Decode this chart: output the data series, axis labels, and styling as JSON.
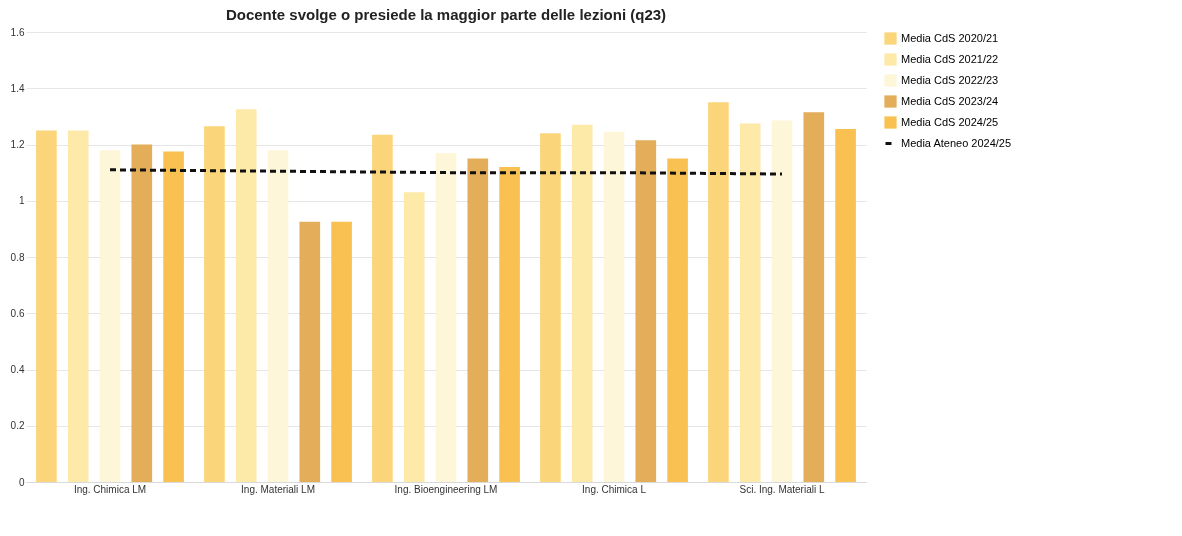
{
  "chart_data": {
    "type": "bar",
    "title": "Docente svolge o presiede la maggior parte delle lezioni (q23)",
    "categories": [
      "Ing. Chimica LM",
      "Ing. Materiali LM",
      "Ing. Bioengineering LM",
      "Ing. Chimica L",
      "Sci. Ing. Materiali L"
    ],
    "series": [
      {
        "name": "Media CdS 2020/21",
        "color": "#fbd57a",
        "values": [
          1.25,
          1.265,
          1.235,
          1.24,
          1.35
        ]
      },
      {
        "name": "Media CdS 2021/22",
        "color": "#fde9a8",
        "values": [
          1.25,
          1.325,
          1.03,
          1.27,
          1.275
        ]
      },
      {
        "name": "Media CdS 2022/23",
        "color": "#fef6d8",
        "values": [
          1.18,
          1.18,
          1.17,
          1.245,
          1.285
        ]
      },
      {
        "name": "Media CdS 2023/24",
        "color": "#e3ad5a",
        "values": [
          1.2,
          0.925,
          1.15,
          1.215,
          1.315
        ]
      },
      {
        "name": "Media CdS 2024/25",
        "color": "#f9c152",
        "values": [
          1.175,
          0.925,
          1.12,
          1.15,
          1.255
        ]
      },
      {
        "name": "Media Ateneo 2024/25",
        "type": "line",
        "color": "#111111",
        "line_style": "dashed",
        "values": [
          1.11,
          1.105,
          1.1,
          1.1,
          1.095
        ]
      }
    ],
    "ylim": [
      0,
      1.6
    ],
    "yticks": [
      0,
      0.2,
      0.4,
      0.6,
      0.8,
      1,
      1.2,
      1.4,
      1.6
    ],
    "grid": "y",
    "legend": "right"
  }
}
